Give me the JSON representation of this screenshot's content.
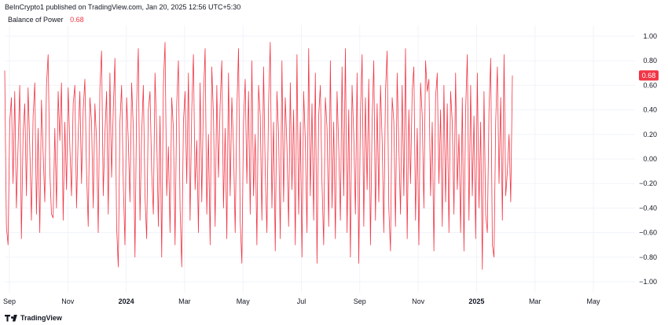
{
  "header": {
    "publisher": "BeInCrypto1 published on TradingView.com, Jan 20, 2025 12:56 UTC+5:30"
  },
  "legend": {
    "name": "Balance of Power",
    "value": "0.68"
  },
  "footer": {
    "brand": "TradingView"
  },
  "colors": {
    "series": "#f23645",
    "badge": "#f23645",
    "grid": "#f0f3fa",
    "text": "#131722"
  },
  "chart_data": {
    "type": "line",
    "title": "Balance of Power",
    "ylim": [
      -1.0,
      1.0
    ],
    "yticks": [
      "1.00",
      "0.80",
      "0.60",
      "0.40",
      "0.20",
      "0.00",
      "−0.20",
      "−0.40",
      "−0.60",
      "−0.80",
      "−1.00"
    ],
    "xticks": [
      {
        "label": "Sep",
        "bold": false
      },
      {
        "label": "Nov",
        "bold": false
      },
      {
        "label": "2024",
        "bold": true
      },
      {
        "label": "Mar",
        "bold": false
      },
      {
        "label": "May",
        "bold": false
      },
      {
        "label": "Jul",
        "bold": false
      },
      {
        "label": "Sep",
        "bold": false
      },
      {
        "label": "Nov",
        "bold": false
      },
      {
        "label": "2025",
        "bold": true
      },
      {
        "label": "Mar",
        "bold": false
      },
      {
        "label": "May",
        "bold": false
      }
    ],
    "last_value": 0.68,
    "last_label": "0.68",
    "series": [
      {
        "values": [
          0.72,
          -0.55,
          -0.7,
          0.3,
          0.5,
          -0.2,
          0.55,
          -0.4,
          0.1,
          0.6,
          -0.65,
          0.2,
          0.45,
          -0.3,
          0.58,
          0.1,
          -0.5,
          0.35,
          0.62,
          -0.45,
          0.25,
          -0.6,
          0.48,
          0.05,
          -0.35,
          0.6,
          0.85,
          -0.1,
          -0.45,
          -0.48,
          0.25,
          -0.4,
          0.55,
          0.15,
          0.62,
          -0.5,
          0.3,
          -0.25,
          0.58,
          0.1,
          -0.3,
          0.45,
          0.6,
          -0.4,
          0.2,
          0.55,
          -0.2,
          0.4,
          0.65,
          -0.1,
          -0.55,
          0.5,
          0.3,
          -0.4,
          0.45,
          0.15,
          -0.6,
          0.58,
          0.88,
          -0.3,
          0.2,
          0.55,
          -0.45,
          0.7,
          -0.15,
          0.4,
          0.82,
          -0.55,
          -0.88,
          0.3,
          0.6,
          -0.2,
          -0.7,
          0.5,
          0.15,
          -0.35,
          0.62,
          0.25,
          -0.8,
          0.45,
          0.9,
          -0.5,
          0.2,
          0.6,
          -0.3,
          -0.65,
          0.4,
          0.55,
          -0.1,
          -0.45,
          0.7,
          0.2,
          -0.55,
          0.35,
          -0.8,
          0.6,
          0.95,
          -0.3,
          0.1,
          -0.6,
          0.5,
          0.25,
          -0.7,
          0.45,
          0.8,
          -0.4,
          -0.88,
          0.3,
          0.55,
          -0.2,
          0.7,
          -0.5,
          0.4,
          0.85,
          -0.25,
          0.15,
          -0.6,
          0.62,
          -0.35,
          0.5,
          0.9,
          -0.45,
          0.2,
          -0.7,
          0.75,
          0.35,
          -0.55,
          0.6,
          -0.15,
          0.45,
          0.8,
          -0.4,
          0.25,
          -0.65,
          0.7,
          -0.3,
          0.5,
          0.1,
          -0.6,
          0.4,
          0.9,
          -0.5,
          -0.85,
          0.3,
          0.65,
          -0.2,
          0.55,
          -0.45,
          0.8,
          -0.3,
          0.2,
          -0.7,
          0.6,
          0.35,
          -0.5,
          0.75,
          -0.1,
          -0.6,
          0.45,
          0.95,
          -0.4,
          0.3,
          -0.75,
          0.55,
          0.2,
          -0.65,
          0.8,
          -0.35,
          0.5,
          0.1,
          -0.55,
          0.62,
          -0.25,
          0.4,
          -0.7,
          0.85,
          -0.45,
          0.3,
          -0.8,
          0.55,
          0.15,
          -0.6,
          0.9,
          -0.3,
          0.45,
          -0.5,
          0.7,
          -0.85,
          0.35,
          0.6,
          -0.2,
          -0.7,
          0.5,
          0.25,
          -0.55,
          0.8,
          -0.4,
          0.3,
          -0.65,
          0.55,
          0.1,
          -0.5,
          0.75,
          -0.3,
          0.9,
          -0.6,
          0.4,
          -0.8,
          0.6,
          0.2,
          -0.45,
          0.7,
          -0.85,
          0.35,
          0.85,
          -0.55,
          0.5,
          -0.25,
          0.65,
          -0.7,
          0.3,
          0.8,
          -0.5,
          0.45,
          -0.35,
          0.6,
          0.15,
          -0.6,
          0.55,
          0.88,
          -0.4,
          -0.75,
          0.5,
          0.3,
          -0.55,
          0.7,
          0.1,
          -0.45,
          0.6,
          -0.3,
          0.9,
          -0.65,
          0.4,
          -0.2,
          0.55,
          0.75,
          -0.5,
          0.25,
          -0.7,
          0.62,
          0.35,
          -0.4,
          0.8,
          0.55,
          0.65,
          -0.3,
          0.3,
          -0.75,
          0.5,
          0.7,
          -0.2,
          0.4,
          -0.55,
          0.6,
          -0.35,
          0.45,
          -0.6,
          0.55,
          0.3,
          -0.45,
          0.7,
          -0.25,
          0.2,
          -0.6,
          0.5,
          -0.75,
          0.4,
          0.85,
          -0.5,
          0.6,
          -0.3,
          0.35,
          -0.65,
          0.7,
          -0.4,
          0.3,
          -0.9,
          0.55,
          -0.45,
          -0.6,
          0.4,
          0.82,
          -0.7,
          -0.8,
          0.3,
          0.75,
          -0.2,
          0.5,
          -0.5,
          0.85,
          -0.3,
          -0.1,
          0.2,
          -0.35,
          0.68
        ]
      }
    ]
  }
}
